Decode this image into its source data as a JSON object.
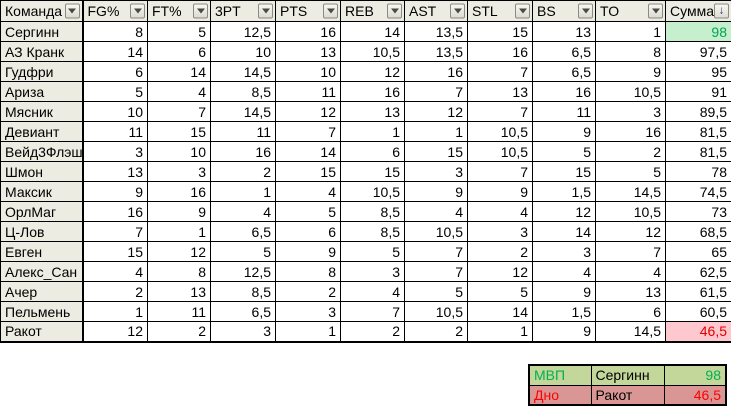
{
  "table": {
    "columns": [
      {
        "label": "Команда",
        "icon": "filter-dropdown-icon"
      },
      {
        "label": "FG%",
        "icon": "filter-dropdown-icon"
      },
      {
        "label": "FT%",
        "icon": "filter-dropdown-icon"
      },
      {
        "label": "3PT",
        "icon": "filter-dropdown-icon"
      },
      {
        "label": "PTS",
        "icon": "filter-dropdown-icon"
      },
      {
        "label": "REB",
        "icon": "filter-dropdown-icon"
      },
      {
        "label": "AST",
        "icon": "filter-dropdown-icon"
      },
      {
        "label": "STL",
        "icon": "filter-dropdown-icon"
      },
      {
        "label": "BS",
        "icon": "filter-dropdown-icon"
      },
      {
        "label": "TO",
        "icon": "filter-dropdown-icon"
      },
      {
        "label": "Сумма",
        "icon": "sort-descending-icon"
      }
    ],
    "rows": [
      {
        "team": "Сергинн",
        "stats": [
          "8",
          "5",
          "12,5",
          "16",
          "14",
          "13,5",
          "15",
          "13",
          "1"
        ],
        "sum": "98",
        "highlight": "good"
      },
      {
        "team": "АЗ Кранк",
        "stats": [
          "14",
          "6",
          "10",
          "13",
          "10,5",
          "13,5",
          "16",
          "6,5",
          "8"
        ],
        "sum": "97,5",
        "highlight": null
      },
      {
        "team": "Гудфри",
        "stats": [
          "6",
          "14",
          "14,5",
          "10",
          "12",
          "16",
          "7",
          "6,5",
          "9"
        ],
        "sum": "95",
        "highlight": null
      },
      {
        "team": "Ариза",
        "stats": [
          "5",
          "4",
          "8,5",
          "11",
          "16",
          "7",
          "13",
          "16",
          "10,5"
        ],
        "sum": "91",
        "highlight": null
      },
      {
        "team": "Мясник",
        "stats": [
          "10",
          "7",
          "14,5",
          "12",
          "13",
          "12",
          "7",
          "11",
          "3"
        ],
        "sum": "89,5",
        "highlight": null
      },
      {
        "team": "Девиант",
        "stats": [
          "11",
          "15",
          "11",
          "7",
          "1",
          "1",
          "10,5",
          "9",
          "16"
        ],
        "sum": "81,5",
        "highlight": null
      },
      {
        "team": "Вейд3Флэш",
        "stats": [
          "3",
          "10",
          "16",
          "14",
          "6",
          "15",
          "10,5",
          "5",
          "2"
        ],
        "sum": "81,5",
        "highlight": null
      },
      {
        "team": "Шмон",
        "stats": [
          "13",
          "3",
          "2",
          "15",
          "15",
          "3",
          "7",
          "15",
          "5"
        ],
        "sum": "78",
        "highlight": null
      },
      {
        "team": "Максик",
        "stats": [
          "9",
          "16",
          "1",
          "4",
          "10,5",
          "9",
          "9",
          "1,5",
          "14,5"
        ],
        "sum": "74,5",
        "highlight": null
      },
      {
        "team": "ОрлМаг",
        "stats": [
          "16",
          "9",
          "4",
          "5",
          "8,5",
          "4",
          "4",
          "12",
          "10,5"
        ],
        "sum": "73",
        "highlight": null
      },
      {
        "team": "Ц-Лов",
        "stats": [
          "7",
          "1",
          "6,5",
          "6",
          "8,5",
          "10,5",
          "3",
          "14",
          "12"
        ],
        "sum": "68,5",
        "highlight": null
      },
      {
        "team": "Евген",
        "stats": [
          "15",
          "12",
          "5",
          "9",
          "5",
          "7",
          "2",
          "3",
          "7"
        ],
        "sum": "65",
        "highlight": null
      },
      {
        "team": "Алекс_Сан",
        "stats": [
          "4",
          "8",
          "12,5",
          "8",
          "3",
          "7",
          "12",
          "4",
          "4"
        ],
        "sum": "62,5",
        "highlight": null
      },
      {
        "team": "Ачер",
        "stats": [
          "2",
          "13",
          "8,5",
          "2",
          "4",
          "5",
          "5",
          "9",
          "13"
        ],
        "sum": "61,5",
        "highlight": null
      },
      {
        "team": "Пельмень",
        "stats": [
          "1",
          "11",
          "6,5",
          "3",
          "7",
          "10,5",
          "14",
          "1,5",
          "6"
        ],
        "sum": "60,5",
        "highlight": null
      },
      {
        "team": "Ракот",
        "stats": [
          "12",
          "2",
          "3",
          "1",
          "2",
          "2",
          "1",
          "9",
          "14,5"
        ],
        "sum": "46,5",
        "highlight": "bad"
      }
    ]
  },
  "summary": {
    "mvp": {
      "label": "МВП",
      "team": "Сергинн",
      "value": "98"
    },
    "worst": {
      "label": "Дно",
      "team": "Ракот",
      "value": "46,5"
    }
  },
  "colors": {
    "header_bg": "#ECECE2",
    "grid": "#000000",
    "good_bg": "#C6EFCE",
    "good_text": "#00A550",
    "bad_bg": "#FFC7CE",
    "bad_text": "#E00000",
    "mvp_row_bg": "#C4D79B",
    "mvp_text": "#00B050",
    "worst_row_bg": "#D99694",
    "worst_text": "#FF0000"
  }
}
